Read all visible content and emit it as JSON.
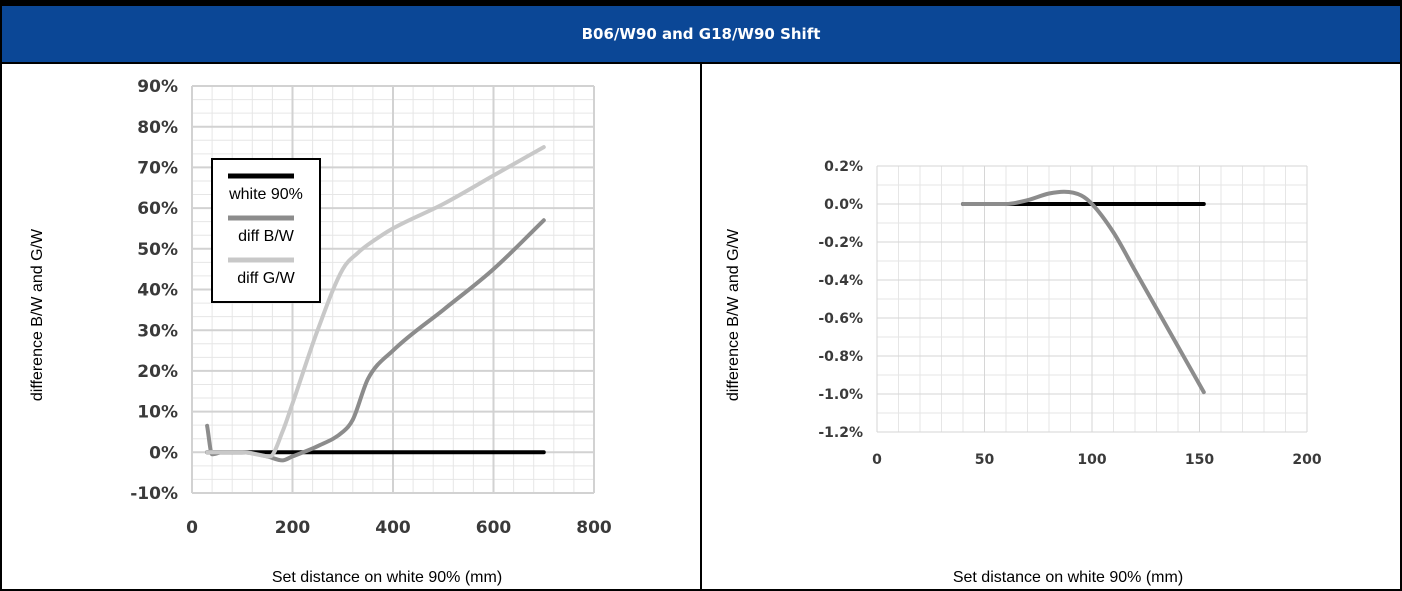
{
  "header": {
    "title": "B06/W90 and G18/W90 Shift"
  },
  "colors": {
    "header_bg": "#0b4796",
    "white90": "#000000",
    "diffBW": "#8c8c8c",
    "diffGW": "#c8c8c8"
  },
  "chart_data": [
    {
      "type": "line",
      "xlabel": "Set distance on white 90% (mm)",
      "ylabel": "difference B/W and G/W",
      "xlim": [
        0,
        800
      ],
      "ylim": [
        -10,
        90
      ],
      "xticks": [
        "0",
        "200",
        "400",
        "600",
        "800"
      ],
      "yticks": [
        "-10%",
        "0%",
        "10%",
        "20%",
        "30%",
        "40%",
        "50%",
        "60%",
        "70%",
        "80%",
        "90%"
      ],
      "grid": true,
      "legend_position": "upper-left (inside)",
      "series": [
        {
          "name": "white 90%",
          "x": [
            30,
            700
          ],
          "y": [
            0,
            0
          ]
        },
        {
          "name": "diff B/W",
          "x": [
            30,
            40,
            60,
            100,
            150,
            180,
            200,
            250,
            300,
            320,
            350,
            400,
            500,
            600,
            700
          ],
          "y": [
            6.5,
            -0.5,
            0,
            0,
            -1,
            -2,
            -1,
            1.5,
            5,
            8,
            18,
            25,
            35,
            45,
            57
          ]
        },
        {
          "name": "diff G/W",
          "x": [
            30,
            100,
            155,
            180,
            200,
            250,
            300,
            330,
            350,
            400,
            500,
            600,
            700
          ],
          "y": [
            0,
            0,
            -1,
            5,
            12,
            30,
            45,
            49,
            51,
            55,
            61,
            68,
            75
          ]
        }
      ]
    },
    {
      "type": "line",
      "xlabel": "Set distance on white 90% (mm)",
      "ylabel": "difference B/W and G/W",
      "xlim": [
        0,
        200
      ],
      "ylim": [
        -1.2,
        0.2
      ],
      "xticks": [
        "0",
        "50",
        "100",
        "150",
        "200"
      ],
      "yticks": [
        "0.2%",
        "0.0%",
        "-0.2%",
        "-0.4%",
        "-0.6%",
        "-0.8%",
        "-1.0%",
        "-1.2%"
      ],
      "grid": true,
      "series": [
        {
          "name": "white 90%",
          "x": [
            40,
            152
          ],
          "y": [
            0,
            0
          ]
        },
        {
          "name": "diff B/W",
          "x": [
            40,
            60,
            70,
            80,
            87,
            95,
            100,
            110,
            120,
            130,
            140,
            152
          ],
          "y": [
            0,
            0,
            0.02,
            0.055,
            0.065,
            0.045,
            0.0,
            -0.15,
            -0.35,
            -0.55,
            -0.75,
            -0.99
          ]
        }
      ]
    }
  ]
}
